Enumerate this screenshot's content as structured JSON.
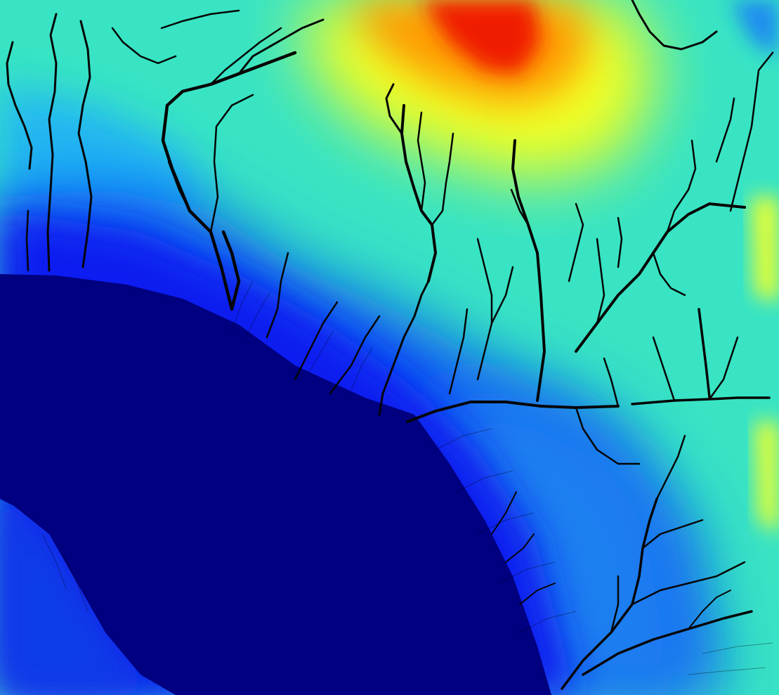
{
  "map": {
    "type": "elevation-heatmap-with-drainage-network",
    "colormap": "jet",
    "colormap_stops": [
      "#00007f",
      "#0000ff",
      "#007fff",
      "#00ffff",
      "#7fff7f",
      "#ffff00",
      "#ff7f00",
      "#ff0000"
    ],
    "background_color": "#000080",
    "channel_color": "#000000",
    "peak_region": "top-center",
    "lowland_region": "bottom-left",
    "labels_visible": false
  }
}
